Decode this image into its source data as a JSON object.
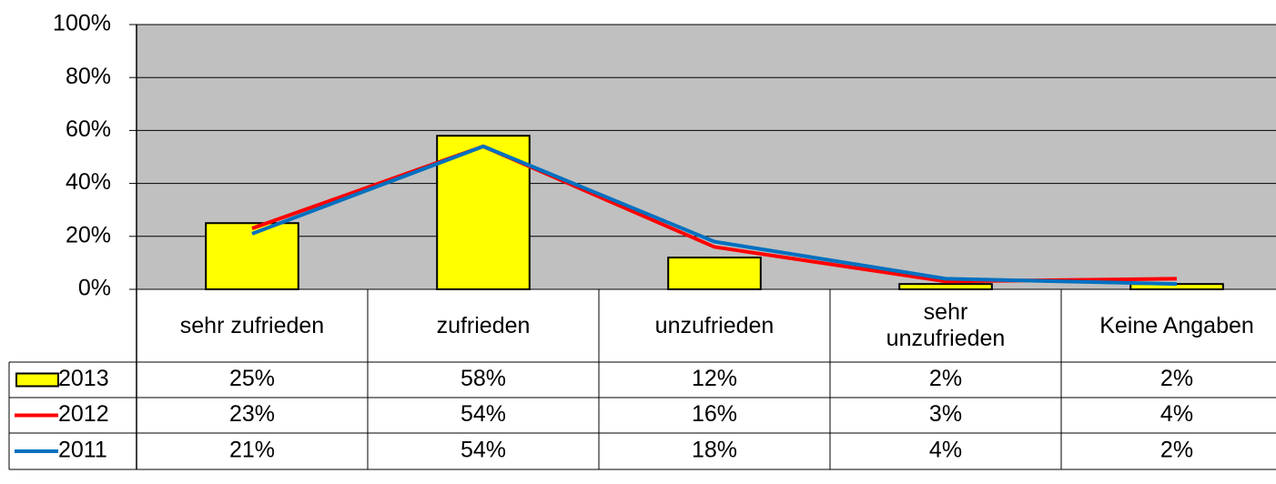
{
  "chart_data": {
    "type": "bar",
    "categories": [
      "sehr zufrieden",
      "zufrieden",
      "unzufrieden",
      "sehr unzufrieden",
      "Keine Angaben"
    ],
    "series": [
      {
        "name": "2013",
        "type": "bar",
        "color": "#ffff00",
        "values": [
          25,
          58,
          12,
          2,
          2
        ],
        "value_labels": [
          "25%",
          "58%",
          "12%",
          "2%",
          "2%"
        ]
      },
      {
        "name": "2012",
        "type": "line",
        "color": "#ff0000",
        "values": [
          23,
          54,
          16,
          3,
          4
        ],
        "value_labels": [
          "23%",
          "54%",
          "16%",
          "3%",
          "4%"
        ]
      },
      {
        "name": "2011",
        "type": "line",
        "color": "#0070c0",
        "values": [
          21,
          54,
          18,
          4,
          2
        ],
        "value_labels": [
          "21%",
          "54%",
          "18%",
          "4%",
          "2%"
        ]
      }
    ],
    "ylim": [
      0,
      100
    ],
    "yticks": [
      {
        "value": 0,
        "label": "0%"
      },
      {
        "value": 20,
        "label": "20%"
      },
      {
        "value": 40,
        "label": "40%"
      },
      {
        "value": 60,
        "label": "60%"
      },
      {
        "value": 80,
        "label": "80%"
      },
      {
        "value": 100,
        "label": "100%"
      }
    ],
    "grid": true
  }
}
